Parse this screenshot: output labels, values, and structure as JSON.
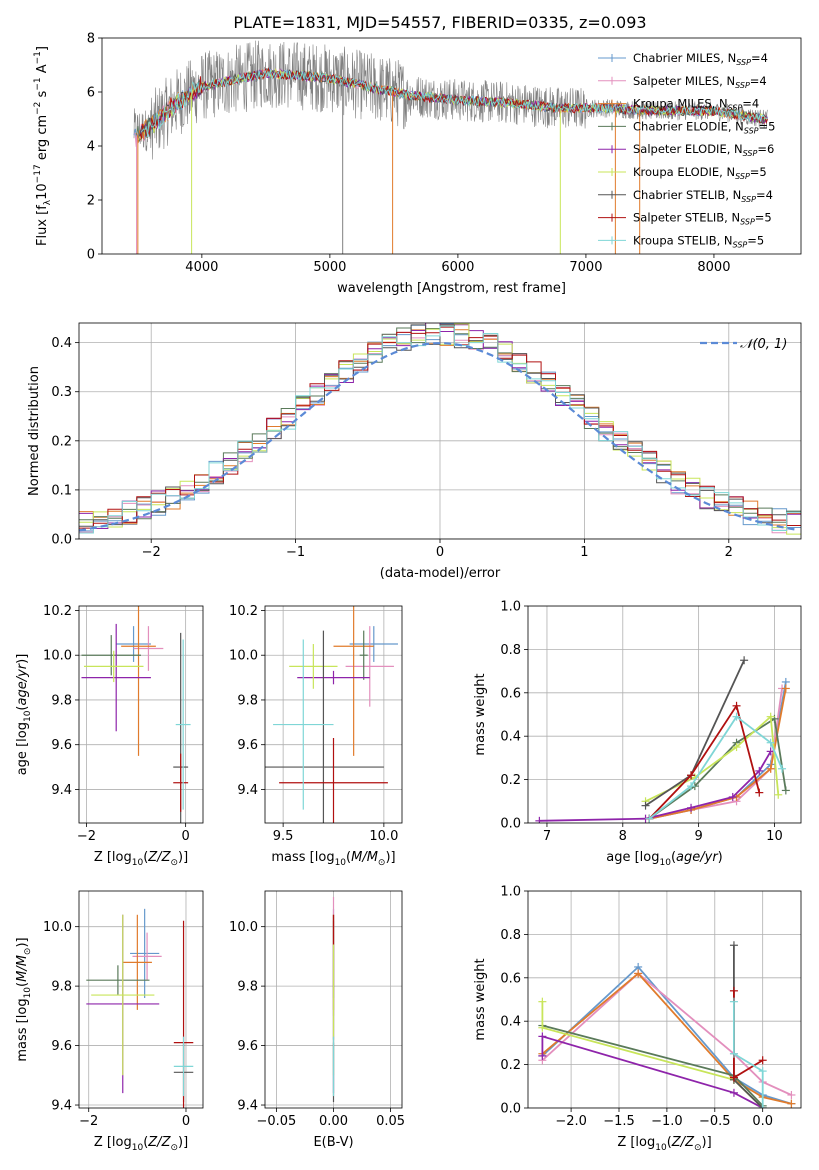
{
  "colors": {
    "Chabrier MILES": "#6699cc",
    "Salpeter MILES": "#e38fbd",
    "Kroupa MILES": "#e07b2c",
    "Chabrier ELODIE": "#5a7a5a",
    "Salpeter ELODIE": "#8e24aa",
    "Kroupa ELODIE": "#c8e55a",
    "Chabrier STELIB": "#555555",
    "Salpeter STELIB": "#b01010",
    "Kroupa STELIB": "#7fd6d6",
    "spectrum": "#808080",
    "gaussian": "#5b8ad6",
    "grid": "#b0b0b0"
  },
  "chart_data": [
    {
      "id": "spectrum",
      "type": "line",
      "title": "PLATE=1831, MJD=54557, FIBERID=0335, z=0.093",
      "xlabel": "wavelength [Angstrom, rest frame]",
      "ylabel": "Flux [f",
      "xlim": [
        3220,
        8680
      ],
      "ylim": [
        0,
        8
      ],
      "xticks": [
        4000,
        5000,
        6000,
        7000,
        8000
      ],
      "yticks": [
        0,
        2,
        4,
        6,
        8
      ],
      "grid": false,
      "legend_position": "top-right",
      "legend": [
        {
          "label": "Chabrier MILES, N",
          "n": "4",
          "model": "Chabrier MILES"
        },
        {
          "label": "Salpeter MILES, N",
          "n": "4",
          "model": "Salpeter MILES"
        },
        {
          "label": "Kroupa MILES, N",
          "n": "4",
          "model": "Kroupa MILES"
        },
        {
          "label": "Chabrier ELODIE, N",
          "n": "5",
          "model": "Chabrier ELODIE"
        },
        {
          "label": "Salpeter ELODIE, N",
          "n": "6",
          "model": "Salpeter ELODIE"
        },
        {
          "label": "Kroupa ELODIE, N",
          "n": "5",
          "model": "Kroupa ELODIE"
        },
        {
          "label": "Chabrier STELIB, N",
          "n": "4",
          "model": "Chabrier STELIB"
        },
        {
          "label": "Salpeter STELIB, N",
          "n": "5",
          "model": "Salpeter STELIB"
        },
        {
          "label": "Kroupa STELIB, N",
          "n": "5",
          "model": "Kroupa STELIB"
        }
      ],
      "continuum": [
        [
          3470,
          4.3
        ],
        [
          3600,
          4.7
        ],
        [
          3800,
          5.6
        ],
        [
          4000,
          6.2
        ],
        [
          4200,
          6.4
        ],
        [
          4500,
          6.7
        ],
        [
          4800,
          6.6
        ],
        [
          5000,
          6.5
        ],
        [
          5300,
          6.2
        ],
        [
          5600,
          5.9
        ],
        [
          6000,
          5.7
        ],
        [
          6400,
          5.6
        ],
        [
          6800,
          5.4
        ],
        [
          7200,
          5.4
        ],
        [
          7500,
          5.3
        ],
        [
          8000,
          5.3
        ],
        [
          8400,
          5.0
        ]
      ]
    },
    {
      "id": "residuals",
      "type": "line",
      "xlabel": "(data-model)/error",
      "ylabel": "Normed distribution",
      "xlim": [
        -2.5,
        2.5
      ],
      "ylim": [
        0,
        0.44
      ],
      "xticks": [
        -2,
        -1,
        0,
        1,
        2
      ],
      "yticks": [
        0.0,
        0.1,
        0.2,
        0.3,
        0.4
      ],
      "grid": true,
      "legend_position": "top-right",
      "gaussian_label": "𝒩(0, 1)",
      "bin_width": 0.1
    },
    {
      "id": "age-vs-Z",
      "type": "scatter",
      "xlabel": "Z [log",
      "ylabel": "age  [log",
      "xlim": [
        -2.15,
        0.35
      ],
      "ylim": [
        9.25,
        10.22
      ],
      "xticks": [
        -2,
        0
      ],
      "yticks": [
        9.4,
        9.6,
        9.8,
        10.0,
        10.2
      ],
      "grid": true,
      "points": [
        {
          "model": "Chabrier MILES",
          "x": -1.05,
          "xerr": 0.35,
          "y": 10.05,
          "yerr": 0.08
        },
        {
          "model": "Salpeter MILES",
          "x": -0.75,
          "xerr": 0.3,
          "y": 10.03,
          "yerr": 0.1
        },
        {
          "model": "Kroupa MILES",
          "x": -0.95,
          "xerr": 0.35,
          "y": 10.04,
          "yerr": 0.49
        },
        {
          "model": "Chabrier ELODIE",
          "x": -1.5,
          "xerr": 0.6,
          "y": 10.0,
          "yerr": 0.09
        },
        {
          "model": "Salpeter ELODIE",
          "x": -1.4,
          "xerr": 0.7,
          "y": 9.9,
          "yerr": 0.24
        },
        {
          "model": "Kroupa ELODIE",
          "x": -1.45,
          "xerr": 0.6,
          "y": 9.95,
          "yerr": 0.07
        },
        {
          "model": "Chabrier STELIB",
          "x": -0.1,
          "xerr": 0.15,
          "y": 9.5,
          "yerr": 0.6
        },
        {
          "model": "Salpeter STELIB",
          "x": -0.1,
          "xerr": 0.15,
          "y": 9.43,
          "yerr": 0.13
        },
        {
          "model": "Kroupa STELIB",
          "x": -0.05,
          "xerr": 0.15,
          "y": 9.69,
          "yerr": 0.38
        }
      ]
    },
    {
      "id": "age-vs-mass",
      "type": "scatter",
      "xlabel": "mass [log",
      "ylabel": "",
      "xlim": [
        9.41,
        10.09
      ],
      "ylim": [
        9.25,
        10.22
      ],
      "xticks": [
        9.5,
        10.0
      ],
      "yticks": [
        9.4,
        9.6,
        9.8,
        10.0,
        10.2
      ],
      "grid": true,
      "points": [
        {
          "model": "Chabrier MILES",
          "x": 9.95,
          "xerr": 0.12,
          "y": 10.05,
          "yerr": 0.08
        },
        {
          "model": "Salpeter MILES",
          "x": 9.93,
          "xerr": 0.12,
          "y": 9.95,
          "yerr": 0.18
        },
        {
          "model": "Kroupa MILES",
          "x": 9.85,
          "xerr": 0.1,
          "y": 10.04,
          "yerr": 0.49
        },
        {
          "model": "Chabrier ELODIE",
          "x": 9.9,
          "xerr": 0.02,
          "y": 10.0,
          "yerr": 0.11
        },
        {
          "model": "Salpeter ELODIE",
          "x": 9.75,
          "xerr": 0.18,
          "y": 9.9,
          "yerr": 0.03
        },
        {
          "model": "Kroupa ELODIE",
          "x": 9.65,
          "xerr": 0.12,
          "y": 9.95,
          "yerr": 0.1
        },
        {
          "model": "Chabrier STELIB",
          "x": 9.7,
          "xerr": 0.3,
          "y": 9.5,
          "yerr": 0.61
        },
        {
          "model": "Salpeter STELIB",
          "x": 9.75,
          "xerr": 0.27,
          "y": 9.43,
          "yerr": 0.2
        },
        {
          "model": "Kroupa STELIB",
          "x": 9.6,
          "xerr": 0.15,
          "y": 9.69,
          "yerr": 0.38
        }
      ]
    },
    {
      "id": "weight-vs-age",
      "type": "line",
      "xlabel": "age  [log",
      "ylabel": "mass weight",
      "xlim": [
        6.75,
        10.35
      ],
      "ylim": [
        0,
        1.0
      ],
      "xticks": [
        7,
        8,
        9,
        10
      ],
      "yticks": [
        0.0,
        0.2,
        0.4,
        0.6,
        0.8,
        1.0
      ],
      "grid": true,
      "series": [
        {
          "model": "Chabrier MILES",
          "x": [
            8.35,
            8.9,
            9.5,
            9.95,
            10.15
          ],
          "y": [
            0.02,
            0.06,
            0.12,
            0.27,
            0.65
          ]
        },
        {
          "model": "Salpeter MILES",
          "x": [
            8.35,
            8.9,
            9.5,
            9.95,
            10.1
          ],
          "y": [
            0.02,
            0.06,
            0.1,
            0.25,
            0.62
          ]
        },
        {
          "model": "Kroupa MILES",
          "x": [
            8.35,
            8.9,
            9.5,
            9.95,
            10.15
          ],
          "y": [
            0.02,
            0.06,
            0.12,
            0.25,
            0.62
          ]
        },
        {
          "model": "Chabrier ELODIE",
          "x": [
            8.35,
            8.95,
            9.5,
            10.0,
            10.15
          ],
          "y": [
            0.02,
            0.17,
            0.37,
            0.48,
            0.15
          ]
        },
        {
          "model": "Salpeter ELODIE",
          "x": [
            6.9,
            8.3,
            8.9,
            9.45,
            9.8,
            9.95
          ],
          "y": [
            0.01,
            0.02,
            0.07,
            0.12,
            0.24,
            0.33
          ]
        },
        {
          "model": "Kroupa ELODIE",
          "x": [
            8.3,
            8.95,
            9.5,
            9.95,
            10.05
          ],
          "y": [
            0.1,
            0.21,
            0.35,
            0.49,
            0.13
          ]
        },
        {
          "model": "Chabrier STELIB",
          "x": [
            8.3,
            8.9,
            9.6
          ],
          "y": [
            0.08,
            0.22,
            0.75
          ]
        },
        {
          "model": "Salpeter STELIB",
          "x": [
            8.35,
            8.9,
            9.5,
            9.8
          ],
          "y": [
            0.02,
            0.22,
            0.54,
            0.14
          ]
        },
        {
          "model": "Kroupa STELIB",
          "x": [
            8.35,
            8.9,
            9.5,
            9.95,
            10.1
          ],
          "y": [
            0.02,
            0.17,
            0.49,
            0.37,
            0.25
          ]
        }
      ]
    },
    {
      "id": "mass-vs-Z",
      "type": "scatter",
      "xlabel": "Z [log",
      "ylabel": "mass [log",
      "xlim": [
        -2.2,
        0.35
      ],
      "ylim": [
        9.39,
        10.12
      ],
      "xticks": [
        -2,
        0
      ],
      "yticks": [
        9.4,
        9.6,
        9.8,
        10.0
      ],
      "grid": true,
      "points": [
        {
          "model": "Chabrier MILES",
          "x": -0.85,
          "xerr": 0.3,
          "y": 9.91,
          "yerr": 0.15
        },
        {
          "model": "Salpeter MILES",
          "x": -0.8,
          "xerr": 0.3,
          "y": 9.9,
          "yerr": 0.08
        },
        {
          "model": "Kroupa MILES",
          "x": -1.0,
          "xerr": 0.3,
          "y": 9.88,
          "yerr": 0.16
        },
        {
          "model": "Chabrier ELODIE",
          "x": -1.4,
          "xerr": 0.65,
          "y": 9.82,
          "yerr": 0.05
        },
        {
          "model": "Salpeter ELODIE",
          "x": -1.3,
          "xerr": 0.75,
          "y": 9.74,
          "yerr": 0.3
        },
        {
          "model": "Kroupa ELODIE",
          "x": -1.3,
          "xerr": 0.65,
          "y": 9.77,
          "yerr": 0.27
        },
        {
          "model": "Chabrier STELIB",
          "x": -0.05,
          "xerr": 0.2,
          "y": 9.51,
          "yerr": 0.1
        },
        {
          "model": "Salpeter STELIB",
          "x": -0.05,
          "xerr": 0.2,
          "y": 9.61,
          "yerr": 0.41
        },
        {
          "model": "Kroupa STELIB",
          "x": -0.05,
          "xerr": 0.2,
          "y": 9.53,
          "yerr": 0.1
        }
      ]
    },
    {
      "id": "mass-vs-ebv",
      "type": "scatter",
      "xlabel": "E(B-V)",
      "ylabel": "",
      "xlim": [
        -0.06,
        0.06
      ],
      "ylim": [
        9.39,
        10.12
      ],
      "xticks": [
        -0.05,
        0.0,
        0.05
      ],
      "yticks": [
        9.4,
        9.6,
        9.8,
        10.0
      ],
      "grid": true,
      "points": [
        {
          "model": "Chabrier MILES",
          "x": 0,
          "xerr": 0,
          "y": 9.91,
          "yerr": 0.15
        },
        {
          "model": "Salpeter MILES",
          "x": 0,
          "xerr": 0,
          "y": 9.9,
          "yerr": 0.2
        },
        {
          "model": "Kroupa MILES",
          "x": 0,
          "xerr": 0,
          "y": 9.88,
          "yerr": 0.16
        },
        {
          "model": "Chabrier ELODIE",
          "x": 0,
          "xerr": 0,
          "y": 9.82,
          "yerr": 0.2
        },
        {
          "model": "Salpeter ELODIE",
          "x": 0,
          "xerr": 0,
          "y": 9.74,
          "yerr": 0.3
        },
        {
          "model": "Kroupa ELODIE",
          "x": 0,
          "xerr": 0,
          "y": 9.77,
          "yerr": 0.27
        },
        {
          "model": "Chabrier STELIB",
          "x": 0,
          "xerr": 0,
          "y": 9.51,
          "yerr": 0.1
        },
        {
          "model": "Salpeter STELIB",
          "x": 0,
          "xerr": 0,
          "y": 9.99,
          "yerr": 0.05
        },
        {
          "model": "Kroupa STELIB",
          "x": 0,
          "xerr": 0,
          "y": 9.53,
          "yerr": 0.1
        }
      ]
    },
    {
      "id": "weight-vs-Z",
      "type": "line",
      "xlabel": "Z [log",
      "ylabel": "mass weight",
      "xlim": [
        -2.45,
        0.4
      ],
      "ylim": [
        0,
        1.0
      ],
      "xticks": [
        -2.0,
        -1.5,
        -1.0,
        -0.5,
        0.0
      ],
      "yticks": [
        0.0,
        0.2,
        0.4,
        0.6,
        0.8,
        1.0
      ],
      "grid": true,
      "series": [
        {
          "model": "Chabrier MILES",
          "x": [
            -2.3,
            -1.3,
            -0.3,
            0.0,
            0.3
          ],
          "y": [
            0.24,
            0.65,
            0.14,
            0.06,
            0.02
          ]
        },
        {
          "model": "Salpeter MILES",
          "x": [
            -2.3,
            -1.3,
            -0.3,
            0.0,
            0.3
          ],
          "y": [
            0.22,
            0.62,
            0.25,
            0.12,
            0.06
          ]
        },
        {
          "model": "Kroupa MILES",
          "x": [
            -2.3,
            -1.3,
            -0.3,
            0.0,
            0.3
          ],
          "y": [
            0.25,
            0.62,
            0.13,
            0.05,
            0.02
          ]
        },
        {
          "model": "Chabrier ELODIE",
          "x": [
            -2.3,
            -0.3,
            0.0
          ],
          "y": [
            0.38,
            0.15,
            0.01
          ]
        },
        {
          "model": "Salpeter ELODIE",
          "x": [
            -2.3,
            -2.3,
            -0.3,
            0.0
          ],
          "y": [
            0.24,
            0.33,
            0.07,
            0.0
          ]
        },
        {
          "model": "Kroupa ELODIE",
          "x": [
            -2.3,
            -2.3,
            -0.3,
            0.0
          ],
          "y": [
            0.49,
            0.37,
            0.13,
            0.0
          ]
        },
        {
          "model": "Chabrier STELIB",
          "x": [
            -0.3,
            -0.3,
            0.0
          ],
          "y": [
            0.75,
            0.13,
            0.0
          ]
        },
        {
          "model": "Salpeter STELIB",
          "x": [
            -0.3,
            -0.3,
            0.0
          ],
          "y": [
            0.54,
            0.14,
            0.22
          ]
        },
        {
          "model": "Kroupa STELIB",
          "x": [
            -0.3,
            -0.3,
            0.0,
            0.0
          ],
          "y": [
            0.49,
            0.25,
            0.17,
            0.0
          ]
        }
      ]
    }
  ]
}
